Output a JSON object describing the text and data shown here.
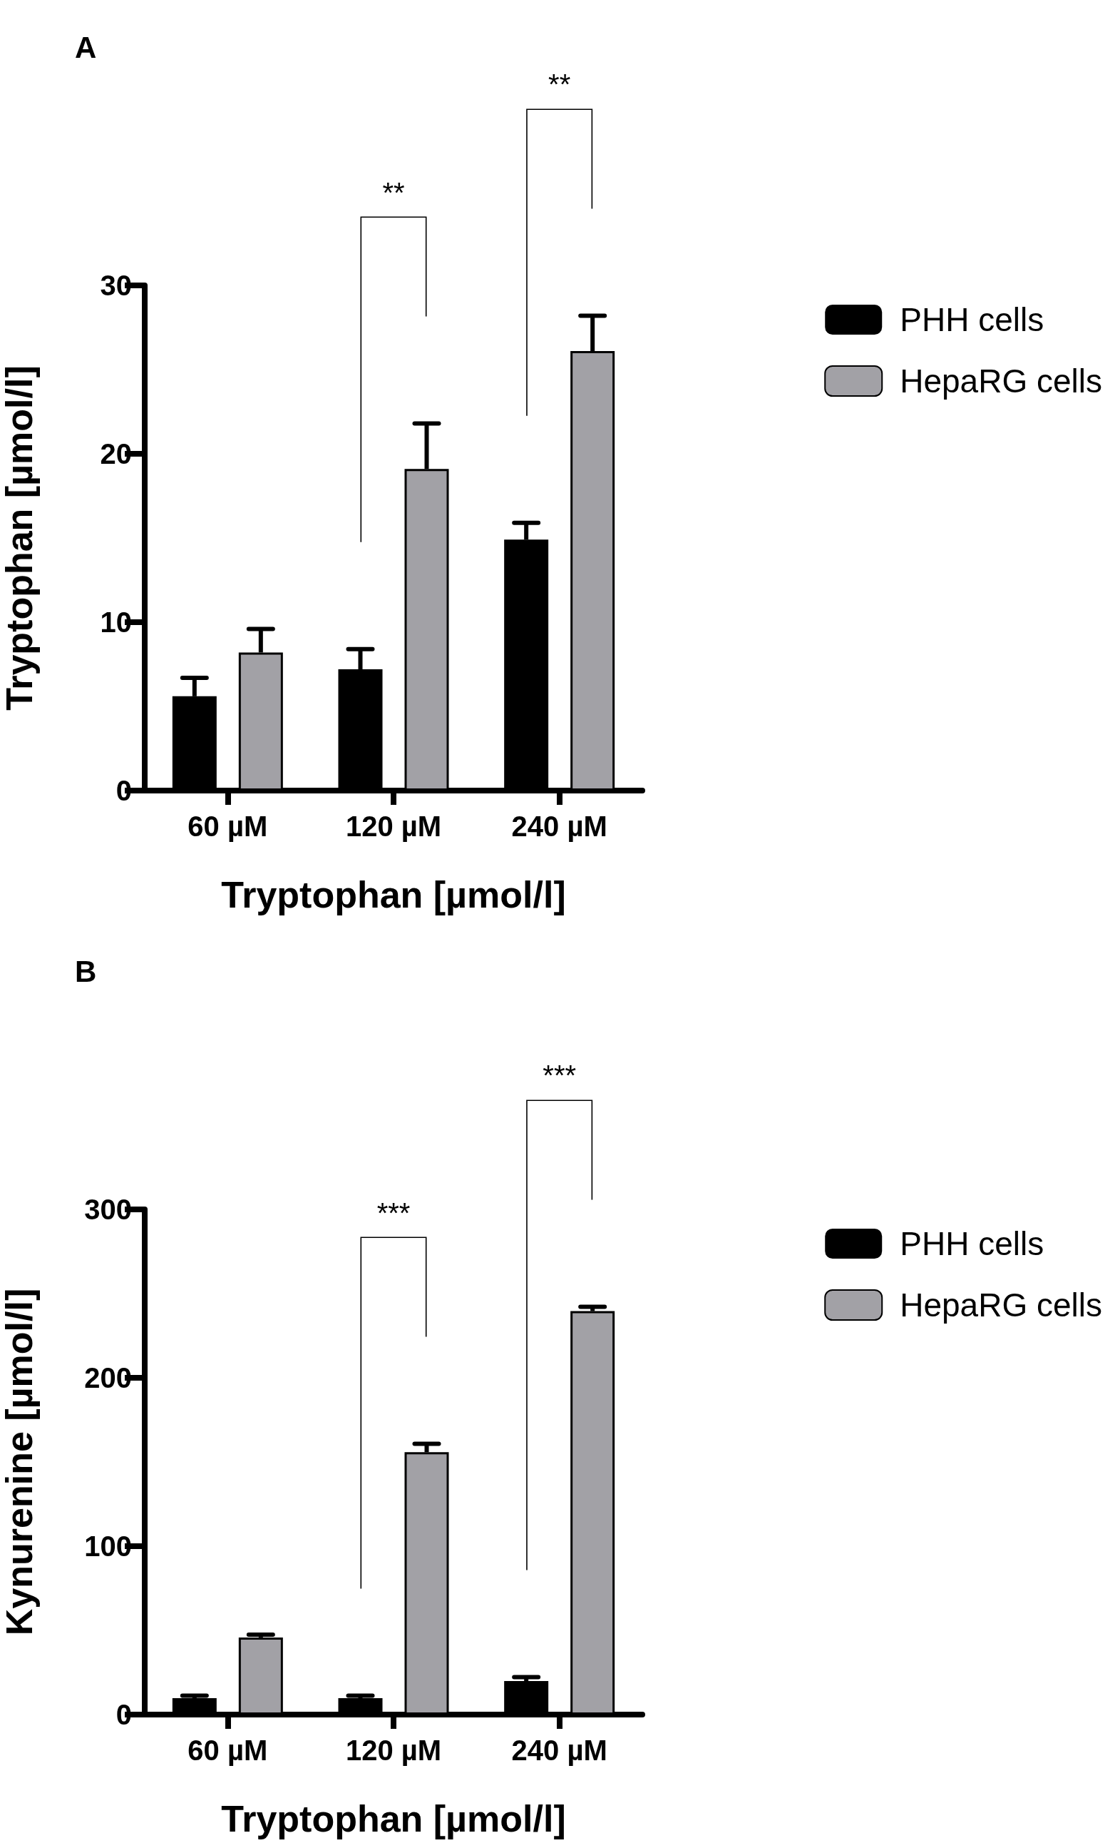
{
  "chart_data": [
    {
      "type": "bar",
      "title": "A",
      "xlabel": "Tryptophan [µmol/l]",
      "ylabel": "Tryptophan [µmol/l]",
      "categories": [
        "60 µM",
        "120 µM",
        "240 µM"
      ],
      "ylim": [
        0,
        30
      ],
      "yticks": [
        0,
        10,
        20,
        30
      ],
      "grid": false,
      "legend": "right",
      "series": [
        {
          "name": "PHH cells",
          "color": "#000000",
          "values": [
            5.6,
            7.2,
            14.9
          ],
          "errors": [
            1.1,
            1.2,
            1.0
          ]
        },
        {
          "name": "HepaRG cells",
          "color": "#a2a1a6",
          "values": [
            8.2,
            19.1,
            26.1
          ],
          "errors": [
            1.4,
            2.7,
            2.1
          ]
        }
      ],
      "annotations": [
        "**",
        "**"
      ]
    },
    {
      "type": "bar",
      "title": "B",
      "xlabel": "Tryptophan [µmol/l]",
      "ylabel": "Kynurenine [µmol/l]",
      "categories": [
        "60 µM",
        "120 µM",
        "240 µM"
      ],
      "ylim": [
        0,
        300
      ],
      "yticks": [
        0,
        100,
        200,
        300
      ],
      "grid": false,
      "legend": "right",
      "series": [
        {
          "name": "PHH cells",
          "color": "#000000",
          "values": [
            9.7,
            9.7,
            19.9
          ],
          "errors": [
            1.5,
            1.5,
            2.3
          ]
        },
        {
          "name": "HepaRG cells",
          "color": "#a2a1a6",
          "values": [
            45.8,
            155.8,
            239.6
          ],
          "errors": [
            1.7,
            5,
            2.6
          ]
        }
      ],
      "annotations": [
        "***",
        "***"
      ]
    }
  ]
}
